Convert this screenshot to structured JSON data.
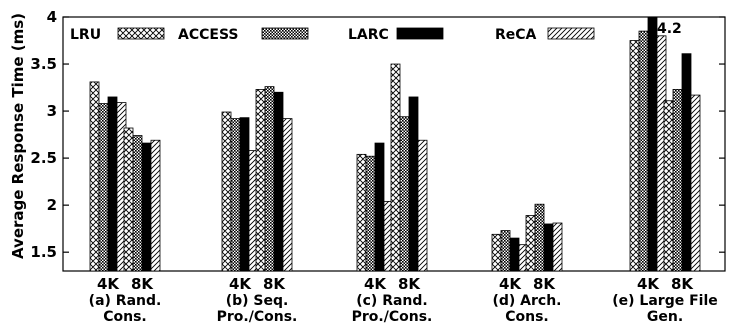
{
  "chart_data": {
    "type": "bar",
    "ylabel": "Average Response Time (ms)",
    "ylim": [
      1.3,
      4.0
    ],
    "yticks": [
      "1.5",
      "2",
      "2.5",
      "3",
      "3.5",
      "4"
    ],
    "legend_placement": "top",
    "series": [
      {
        "name": "LRU",
        "pattern": "crosshatch"
      },
      {
        "name": "ACCESS",
        "pattern": "dense-check"
      },
      {
        "name": "LARC",
        "pattern": "solid-black"
      },
      {
        "name": "ReCA",
        "pattern": "diagonal"
      }
    ],
    "groups": [
      {
        "label_line1": "(a) Rand.",
        "label_line2": "Cons.",
        "bars": [
          {
            "size": "4K",
            "values": [
              3.31,
              3.08,
              3.15,
              3.09
            ]
          },
          {
            "size": "8K",
            "values": [
              2.82,
              2.74,
              2.66,
              2.69
            ]
          }
        ]
      },
      {
        "label_line1": "(b) Seq.",
        "label_line2": "Pro./Cons.",
        "bars": [
          {
            "size": "4K",
            "values": [
              2.99,
              2.92,
              2.93,
              2.58
            ]
          },
          {
            "size": "8K",
            "values": [
              3.23,
              3.26,
              3.2,
              2.92
            ]
          }
        ]
      },
      {
        "label_line1": "(c) Rand.",
        "label_line2": "Pro./Cons.",
        "bars": [
          {
            "size": "4K",
            "values": [
              2.54,
              2.52,
              2.66,
              2.04
            ]
          },
          {
            "size": "8K",
            "values": [
              3.5,
              2.94,
              3.15,
              2.69
            ]
          }
        ]
      },
      {
        "label_line1": "(d) Arch.",
        "label_line2": "Cons.",
        "bars": [
          {
            "size": "4K",
            "values": [
              1.69,
              1.73,
              1.65,
              1.58
            ]
          },
          {
            "size": "8K",
            "values": [
              1.89,
              2.01,
              1.8,
              1.81
            ]
          }
        ]
      },
      {
        "label_line1": "(e) Large File",
        "label_line2": "Gen.",
        "bars": [
          {
            "size": "4K",
            "values": [
              3.75,
              3.85,
              4.2,
              3.8
            ]
          },
          {
            "size": "8K",
            "values": [
              3.11,
              3.23,
              3.61,
              3.17
            ]
          }
        ]
      }
    ],
    "annotations": [
      "4.2"
    ]
  }
}
